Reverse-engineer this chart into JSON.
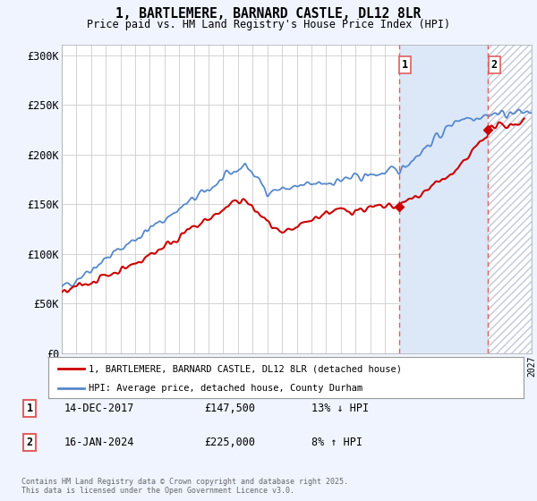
{
  "title": "1, BARTLEMERE, BARNARD CASTLE, DL12 8LR",
  "subtitle": "Price paid vs. HM Land Registry's House Price Index (HPI)",
  "background_color": "#f0f4ff",
  "plot_bg_color": "#ffffff",
  "span_color": "#dce8f8",
  "hatch_color": "#c0c8d8",
  "ylim": [
    0,
    310000
  ],
  "yticks": [
    0,
    50000,
    100000,
    150000,
    200000,
    250000,
    300000
  ],
  "ytick_labels": [
    "£0",
    "£50K",
    "£100K",
    "£150K",
    "£200K",
    "£250K",
    "£300K"
  ],
  "sale1_date_num": 2017.95,
  "sale1_price": 147500,
  "sale1_label": "1",
  "sale1_date_str": "14-DEC-2017",
  "sale1_pct": "13% ↓ HPI",
  "sale2_date_num": 2024.04,
  "sale2_price": 225000,
  "sale2_label": "2",
  "sale2_date_str": "16-JAN-2024",
  "sale2_pct": "8% ↑ HPI",
  "vline_color": "#e06060",
  "red_line_color": "#cc0000",
  "blue_line_color": "#5588cc",
  "legend_red_label": "1, BARTLEMERE, BARNARD CASTLE, DL12 8LR (detached house)",
  "legend_blue_label": "HPI: Average price, detached house, County Durham",
  "footnote": "Contains HM Land Registry data © Crown copyright and database right 2025.\nThis data is licensed under the Open Government Licence v3.0.",
  "xstart": 1995,
  "xend": 2027
}
